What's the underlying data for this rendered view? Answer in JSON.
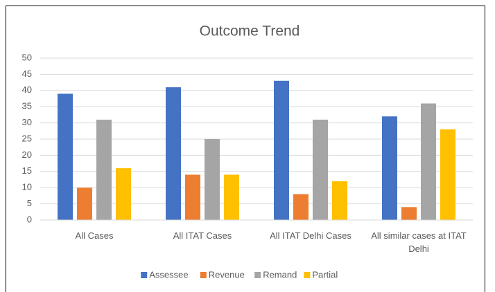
{
  "chart_data": {
    "type": "bar",
    "title": "Outcome Trend",
    "categories": [
      "All Cases",
      "All ITAT Cases",
      "All ITAT Delhi Cases",
      "All similar cases at ITAT Delhi"
    ],
    "series": [
      {
        "name": "Assessee",
        "color": "#4472c4",
        "values": [
          39,
          41,
          43,
          32
        ]
      },
      {
        "name": "Revenue",
        "color": "#ed7d31",
        "values": [
          10,
          14,
          8,
          4
        ]
      },
      {
        "name": "Remand",
        "color": "#a5a5a5",
        "values": [
          31,
          25,
          31,
          36
        ]
      },
      {
        "name": "Partial",
        "color": "#ffc000",
        "values": [
          16,
          14,
          12,
          28
        ]
      }
    ],
    "ylim": [
      0,
      50
    ],
    "yticks": [
      0,
      5,
      10,
      15,
      20,
      25,
      30,
      35,
      40,
      45,
      50
    ],
    "grid": true,
    "legend": "bottom"
  }
}
